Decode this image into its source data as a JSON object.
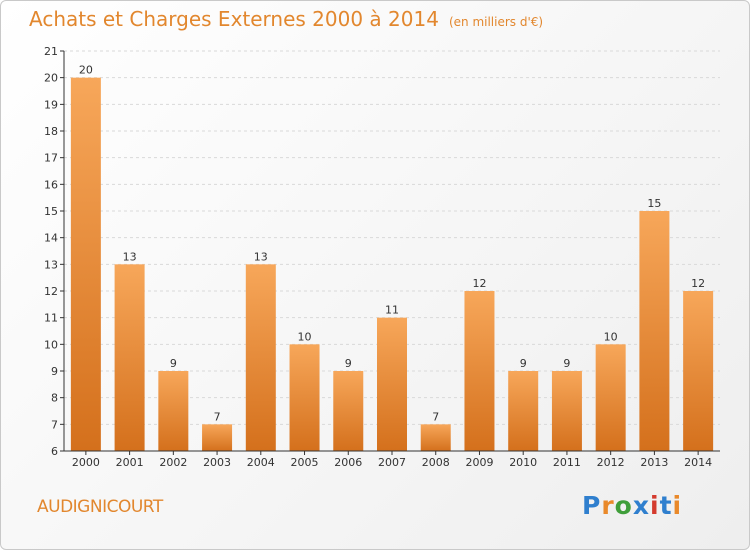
{
  "header": {
    "title": "Achats et Charges Externes 2000 à 2014",
    "unit": "(en milliers d'€)"
  },
  "footer": {
    "commune": "AUDIGNICOURT",
    "logo_text": "Proxiti"
  },
  "colors": {
    "bar_light": "#f7a75a",
    "bar_dark": "#d4701c",
    "title": "#e2872e",
    "grid": "#d9d9d9",
    "axis": "#333333",
    "logo": [
      "#2f7fce",
      "#e9892a",
      "#3f9e3a",
      "#2f7fce",
      "#d43b2e",
      "#2f7fce",
      "#e9892a"
    ]
  },
  "chart_data": {
    "type": "bar",
    "title": "Achats et Charges Externes 2000 à 2014",
    "subtitle": "(en milliers d'€)",
    "xlabel": "",
    "ylabel": "",
    "categories": [
      "2000",
      "2001",
      "2002",
      "2003",
      "2004",
      "2005",
      "2006",
      "2007",
      "2008",
      "2009",
      "2010",
      "2011",
      "2012",
      "2013",
      "2014"
    ],
    "values": [
      20,
      13,
      9,
      7,
      13,
      10,
      9,
      11,
      7,
      12,
      9,
      9,
      10,
      15,
      12
    ],
    "ylim": [
      6,
      21
    ],
    "yticks": [
      6,
      7,
      8,
      9,
      10,
      11,
      12,
      13,
      14,
      15,
      16,
      17,
      18,
      19,
      20,
      21
    ],
    "grid": "horizontal dashed",
    "legend": "none"
  }
}
